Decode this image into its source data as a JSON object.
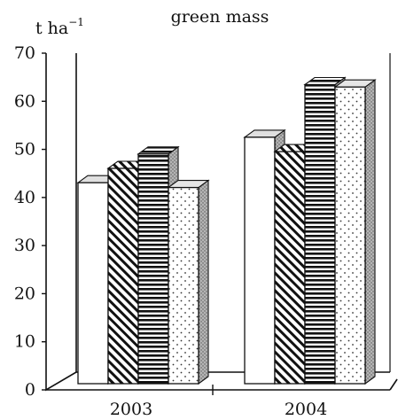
{
  "chart_data": {
    "type": "bar",
    "title": "green mass",
    "ylabel": "t ha",
    "ylabel_superscript": "−1",
    "xlabel": "",
    "categories": [
      "2003",
      "2004"
    ],
    "ylim": [
      0,
      70
    ],
    "yticks": [
      "0",
      "10",
      "20",
      "30",
      "40",
      "50",
      "60",
      "70"
    ],
    "series": [
      {
        "fill": "plain",
        "values": [
          42,
          51.5
        ]
      },
      {
        "fill": "diagonal",
        "values": [
          45,
          48.5
        ]
      },
      {
        "fill": "horizontal",
        "values": [
          48,
          62.5
        ]
      },
      {
        "fill": "dotted",
        "values": [
          41,
          62
        ]
      }
    ],
    "style": "3d-bars",
    "grid": false,
    "legend": "none"
  }
}
